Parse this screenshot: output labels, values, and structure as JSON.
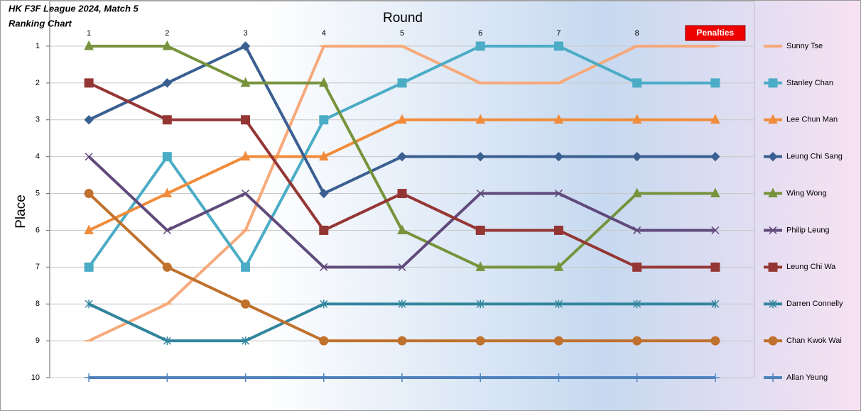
{
  "chart_data": {
    "type": "line",
    "title": "HK F3F League 2024, Match 5",
    "subtitle": "Ranking Chart",
    "x_label": "Round",
    "y_label": "Place",
    "categories": [
      "1",
      "2",
      "3",
      "4",
      "5",
      "6",
      "7",
      "8",
      "Penalties"
    ],
    "ylim": [
      1,
      10
    ],
    "y_reversed": true,
    "yticks": [
      1,
      2,
      3,
      4,
      5,
      6,
      7,
      8,
      9,
      10
    ],
    "grid": true,
    "legend": "right",
    "series": [
      {
        "name": "Sunny Tse",
        "color": "#f6a97a",
        "marker": "dash",
        "values": [
          9,
          8,
          6,
          1,
          1,
          2,
          2,
          1,
          1
        ]
      },
      {
        "name": "Stanley Chan",
        "color": "#4bacc6",
        "marker": "square",
        "values": [
          7,
          4,
          7,
          3,
          2,
          1,
          1,
          2,
          2
        ]
      },
      {
        "name": "Lee Chun Man",
        "color": "#f08c3c",
        "marker": "triangle",
        "values": [
          6,
          5,
          4,
          4,
          3,
          3,
          3,
          3,
          3
        ]
      },
      {
        "name": "Leung Chi Sang",
        "color": "#3a5f91",
        "marker": "diamond",
        "values": [
          3,
          2,
          1,
          5,
          4,
          4,
          4,
          4,
          4
        ]
      },
      {
        "name": "Wing Wong",
        "color": "#77933c",
        "marker": "triangle",
        "values": [
          1,
          1,
          2,
          2,
          6,
          7,
          7,
          5,
          5
        ]
      },
      {
        "name": "Philip Leung",
        "color": "#604a7b",
        "marker": "x",
        "values": [
          4,
          6,
          5,
          7,
          7,
          5,
          5,
          6,
          6
        ]
      },
      {
        "name": "Leung Chi Wa",
        "color": "#943634",
        "marker": "square",
        "values": [
          2,
          3,
          3,
          6,
          5,
          6,
          6,
          7,
          7
        ]
      },
      {
        "name": "Darren Connelly",
        "color": "#31859c",
        "marker": "star",
        "values": [
          8,
          9,
          9,
          8,
          8,
          8,
          8,
          8,
          8
        ]
      },
      {
        "name": "Chan Kwok Wai",
        "color": "#c0712e",
        "marker": "circle",
        "values": [
          5,
          7,
          8,
          9,
          9,
          9,
          9,
          9,
          9
        ]
      },
      {
        "name": "Allan Yeung",
        "color": "#4f81bd",
        "marker": "plus",
        "values": [
          10,
          10,
          10,
          10,
          10,
          10,
          10,
          10,
          10
        ]
      }
    ]
  }
}
